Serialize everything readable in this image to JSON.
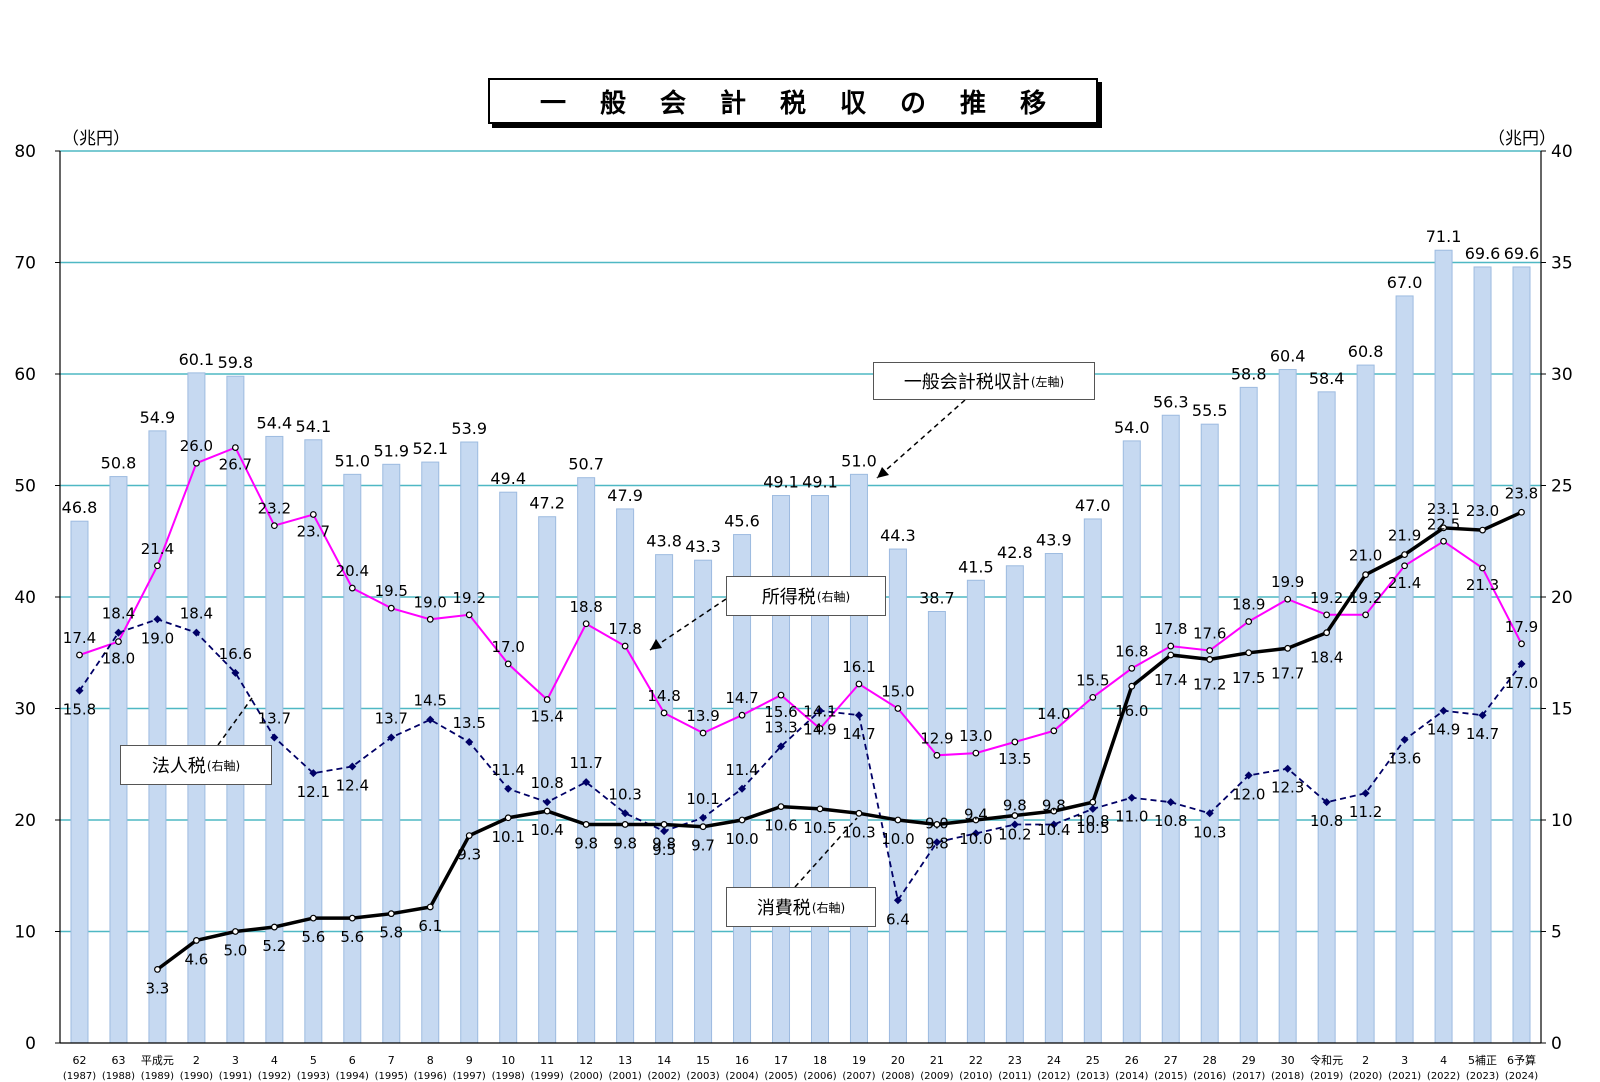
{
  "title": "一般会計税収の推移",
  "axes": {
    "left_unit": "（兆円）",
    "right_unit": "（兆円）"
  },
  "callouts": {
    "total": {
      "label": "一般会計税収計",
      "axis_note": "(左軸)"
    },
    "income": {
      "label": "所得税",
      "axis_note": "(右軸)"
    },
    "corporate": {
      "label": "法人税",
      "axis_note": "(右軸)"
    },
    "consumption": {
      "label": "消費税",
      "axis_note": "(右軸)"
    }
  },
  "colors": {
    "bar_fill": "#c6d9f1",
    "bar_stroke": "#9dbbe0",
    "gridline": "#4fb8c4",
    "income": "#ff00ff",
    "corporate": "#000066",
    "consumption": "#000000"
  },
  "chart_data": {
    "type": "bar",
    "title": "一般会計税収の推移",
    "categories": [
      "62",
      "63",
      "平成元",
      "2",
      "3",
      "4",
      "5",
      "6",
      "7",
      "8",
      "9",
      "10",
      "11",
      "12",
      "13",
      "14",
      "15",
      "16",
      "17",
      "18",
      "19",
      "20",
      "21",
      "22",
      "23",
      "24",
      "25",
      "26",
      "27",
      "28",
      "29",
      "30",
      "令和元",
      "2",
      "3",
      "4",
      "5補正",
      "6予算"
    ],
    "years": [
      "(1987)",
      "(1988)",
      "(1989)",
      "(1990)",
      "(1991)",
      "(1992)",
      "(1993)",
      "(1994)",
      "(1995)",
      "(1996)",
      "(1997)",
      "(1998)",
      "(1999)",
      "(2000)",
      "(2001)",
      "(2002)",
      "(2003)",
      "(2004)",
      "(2005)",
      "(2006)",
      "(2007)",
      "(2008)",
      "(2009)",
      "(2010)",
      "(2011)",
      "(2012)",
      "(2013)",
      "(2014)",
      "(2015)",
      "(2016)",
      "(2017)",
      "(2018)",
      "(2019)",
      "(2020)",
      "(2021)",
      "(2022)",
      "(2023)",
      "(2024)"
    ],
    "left_axis": {
      "ylim": [
        0,
        80
      ],
      "ticks": [
        0,
        10,
        20,
        30,
        40,
        50,
        60,
        70,
        80
      ]
    },
    "right_axis": {
      "ylim": [
        0,
        40
      ],
      "ticks": [
        0,
        5,
        10,
        15,
        20,
        25,
        30,
        35,
        40
      ]
    },
    "grid": true,
    "series": [
      {
        "name": "一般会計税収計",
        "kind": "bar",
        "axis": "left",
        "values": [
          46.8,
          50.8,
          54.9,
          60.1,
          59.8,
          54.4,
          54.1,
          51.0,
          51.9,
          52.1,
          53.9,
          49.4,
          47.2,
          50.7,
          47.9,
          43.8,
          43.3,
          45.6,
          49.1,
          49.1,
          51.0,
          44.3,
          38.7,
          41.5,
          42.8,
          43.9,
          47.0,
          54.0,
          56.3,
          55.5,
          58.8,
          60.4,
          58.4,
          60.8,
          67.0,
          71.1,
          69.6,
          69.6
        ]
      },
      {
        "name": "所得税",
        "kind": "line",
        "axis": "right",
        "values": [
          17.4,
          18.0,
          21.4,
          26.0,
          26.7,
          23.2,
          23.7,
          20.4,
          19.5,
          19.0,
          19.2,
          17.0,
          15.4,
          18.8,
          17.8,
          14.8,
          13.9,
          14.7,
          15.6,
          14.1,
          16.1,
          15.0,
          12.9,
          13.0,
          13.5,
          14.0,
          15.5,
          16.8,
          17.8,
          17.6,
          18.9,
          19.9,
          19.2,
          19.2,
          21.4,
          22.5,
          21.3,
          17.9
        ]
      },
      {
        "name": "法人税",
        "kind": "line",
        "axis": "right",
        "values": [
          15.8,
          18.4,
          19.0,
          18.4,
          16.6,
          13.7,
          12.1,
          12.4,
          13.7,
          14.5,
          13.5,
          11.4,
          10.8,
          11.7,
          10.3,
          9.5,
          10.1,
          11.4,
          13.3,
          14.9,
          14.7,
          6.4,
          9.0,
          9.4,
          9.8,
          9.8,
          10.5,
          11.0,
          10.8,
          10.3,
          12.0,
          12.3,
          10.8,
          11.2,
          13.6,
          14.9,
          14.7,
          17.0
        ]
      },
      {
        "name": "消費税",
        "kind": "line",
        "axis": "right",
        "values": [
          null,
          null,
          3.3,
          4.6,
          5.0,
          5.2,
          5.6,
          5.6,
          5.8,
          6.1,
          9.3,
          10.1,
          10.4,
          9.8,
          9.8,
          9.8,
          9.7,
          10.0,
          10.6,
          10.5,
          10.3,
          10.0,
          9.8,
          10.0,
          10.2,
          10.4,
          10.8,
          16.0,
          17.4,
          17.2,
          17.5,
          17.7,
          18.4,
          21.0,
          21.9,
          23.1,
          23.0,
          23.8
        ]
      }
    ]
  }
}
